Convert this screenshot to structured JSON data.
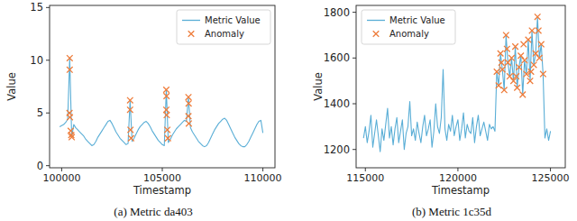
{
  "chart_data": [
    {
      "type": "line",
      "caption": "(a) Metric da403",
      "xlabel": "Timestamp",
      "ylabel": "Value",
      "xlim": [
        99400,
        110600
      ],
      "ylim": [
        -0.2,
        15.2
      ],
      "xticks": [
        100000,
        105000,
        110000
      ],
      "yticks": [
        0,
        5,
        10,
        15
      ],
      "grid": false,
      "legend": "upper right",
      "series": [
        {
          "name": "Metric Value",
          "type": "line",
          "color": "#5aaed6",
          "line_style": "solid",
          "x": [
            99900,
            100000,
            100100,
            100200,
            100300,
            100400,
            100500,
            100600,
            100700,
            100800,
            100900,
            101000,
            101100,
            101200,
            101300,
            101400,
            101500,
            101600,
            101700,
            101800,
            101900,
            102000,
            102100,
            102200,
            102300,
            102400,
            102500,
            102600,
            102700,
            102800,
            102900,
            103000,
            103100,
            103200,
            103300,
            103400,
            103500,
            103600,
            103700,
            103800,
            103900,
            104000,
            104100,
            104200,
            104300,
            104400,
            104500,
            104600,
            104700,
            104800,
            104900,
            105000,
            105100,
            105200,
            105300,
            105400,
            105500,
            105600,
            105700,
            105800,
            105900,
            106000,
            106100,
            106200,
            106300,
            106400,
            106500,
            106600,
            106700,
            106800,
            106900,
            107000,
            107100,
            107200,
            107300,
            107400,
            107500,
            107600,
            107700,
            107800,
            107900,
            108000,
            108100,
            108200,
            108300,
            108400,
            108500,
            108600,
            108700,
            108800,
            108900,
            109000,
            109100,
            109200,
            109300,
            109400,
            109500,
            109600,
            109700,
            109800,
            109900,
            110000
          ],
          "values": [
            3.7,
            3.8,
            3.9,
            4.1,
            4.4,
            10.2,
            2.7,
            3.9,
            3.6,
            3.4,
            3.2,
            3.0,
            2.8,
            2.5,
            2.3,
            2.1,
            1.9,
            2.0,
            2.3,
            2.7,
            3.0,
            3.3,
            3.6,
            3.9,
            4.2,
            4.3,
            4.0,
            3.6,
            3.2,
            2.9,
            2.6,
            2.4,
            2.2,
            2.0,
            2.1,
            6.2,
            2.3,
            2.6,
            3.0,
            3.4,
            3.7,
            3.9,
            4.1,
            4.2,
            4.0,
            3.7,
            3.3,
            3.0,
            2.7,
            2.4,
            2.2,
            2.0,
            1.9,
            7.2,
            2.2,
            2.5,
            2.9,
            3.2,
            3.5,
            3.7,
            3.9,
            4.1,
            4.3,
            4.2,
            6.5,
            3.6,
            3.2,
            2.9,
            2.6,
            2.3,
            2.1,
            1.9,
            1.8,
            1.9,
            2.2,
            2.6,
            3.0,
            3.4,
            3.7,
            4.0,
            4.2,
            4.4,
            4.5,
            4.3,
            3.9,
            3.5,
            3.1,
            2.7,
            2.4,
            2.1,
            1.9,
            1.8,
            1.8,
            2.0,
            2.3,
            2.7,
            3.1,
            3.5,
            3.9,
            4.2,
            4.3,
            3.1
          ]
        },
        {
          "name": "Anomaly",
          "type": "scatter",
          "color": "#ee7d3c",
          "marker": "x",
          "x": [
            100400,
            100400,
            100390,
            100410,
            100450,
            100480,
            100500,
            103400,
            103400,
            103420,
            103450,
            105200,
            105210,
            105200,
            105220,
            105250,
            105280,
            106300,
            106310,
            106300,
            106320
          ],
          "values": [
            10.2,
            9.1,
            5.0,
            4.6,
            3.3,
            2.9,
            2.7,
            6.2,
            5.3,
            3.4,
            2.6,
            7.2,
            6.6,
            5.3,
            4.8,
            3.4,
            2.6,
            6.5,
            5.9,
            4.7,
            4.0
          ]
        }
      ]
    },
    {
      "type": "line",
      "caption": "(b) Metric 1c35d",
      "xlabel": "Timestamp",
      "ylabel": "Value",
      "xlim": [
        114500,
        125800
      ],
      "ylim": [
        1120,
        1830
      ],
      "xticks": [
        115000,
        120000,
        125000
      ],
      "yticks": [
        1200,
        1400,
        1600,
        1800
      ],
      "grid": false,
      "legend": "upper left",
      "series": [
        {
          "name": "Metric Value",
          "type": "line",
          "color": "#5aaed6",
          "line_style": "solid",
          "x": [
            114900,
            115000,
            115100,
            115200,
            115300,
            115400,
            115500,
            115600,
            115700,
            115800,
            115900,
            116000,
            116100,
            116200,
            116300,
            116400,
            116500,
            116600,
            116700,
            116800,
            116900,
            117000,
            117100,
            117200,
            117300,
            117400,
            117500,
            117600,
            117700,
            117800,
            117900,
            118000,
            118100,
            118200,
            118300,
            118400,
            118500,
            118600,
            118700,
            118800,
            118900,
            119000,
            119100,
            119200,
            119300,
            119400,
            119500,
            119600,
            119700,
            119800,
            119900,
            120000,
            120100,
            120200,
            120300,
            120400,
            120500,
            120600,
            120700,
            120800,
            120900,
            121000,
            121100,
            121200,
            121300,
            121400,
            121500,
            121600,
            121700,
            121800,
            121900,
            122000,
            122100,
            122200,
            122300,
            122400,
            122500,
            122600,
            122700,
            122800,
            122900,
            123000,
            123100,
            123200,
            123300,
            123400,
            123500,
            123600,
            123700,
            123800,
            123900,
            124000,
            124100,
            124200,
            124300,
            124400,
            124500,
            124600,
            124700,
            124800,
            124900,
            125000
          ],
          "values": [
            1250,
            1300,
            1230,
            1280,
            1350,
            1210,
            1270,
            1330,
            1260,
            1190,
            1290,
            1240,
            1310,
            1380,
            1250,
            1300,
            1220,
            1290,
            1340,
            1230,
            1280,
            1330,
            1200,
            1270,
            1300,
            1410,
            1260,
            1290,
            1240,
            1320,
            1270,
            1230,
            1300,
            1350,
            1260,
            1290,
            1330,
            1210,
            1280,
            1400,
            1300,
            1270,
            1340,
            1550,
            1290,
            1240,
            1310,
            1280,
            1350,
            1260,
            1300,
            1330,
            1240,
            1290,
            1360,
            1250,
            1310,
            1280,
            1270,
            1340,
            1230,
            1300,
            1350,
            1260,
            1290,
            1320,
            1280,
            1240,
            1310,
            1290,
            1300,
            1280,
            1540,
            1480,
            1620,
            1550,
            1460,
            1700,
            1580,
            1520,
            1600,
            1500,
            1650,
            1470,
            1560,
            1610,
            1440,
            1590,
            1530,
            1680,
            1500,
            1720,
            1570,
            1620,
            1780,
            1600,
            1660,
            1530,
            1250,
            1290,
            1240,
            1280
          ]
        },
        {
          "name": "Anomaly",
          "type": "scatter",
          "color": "#ee7d3c",
          "marker": "x",
          "x": [
            122100,
            122200,
            122300,
            122400,
            122500,
            122600,
            122700,
            122800,
            122900,
            123000,
            123100,
            123200,
            123300,
            123400,
            123500,
            123600,
            123700,
            123800,
            123900,
            124000,
            124100,
            124200,
            124300,
            124400,
            124500,
            124600,
            122350,
            122650,
            123150,
            123550,
            123950,
            124350
          ],
          "values": [
            1540,
            1480,
            1620,
            1550,
            1460,
            1700,
            1580,
            1520,
            1600,
            1500,
            1650,
            1470,
            1560,
            1610,
            1440,
            1590,
            1530,
            1680,
            1500,
            1720,
            1570,
            1620,
            1780,
            1600,
            1660,
            1530,
            1580,
            1640,
            1520,
            1660,
            1540,
            1720
          ]
        }
      ]
    }
  ]
}
